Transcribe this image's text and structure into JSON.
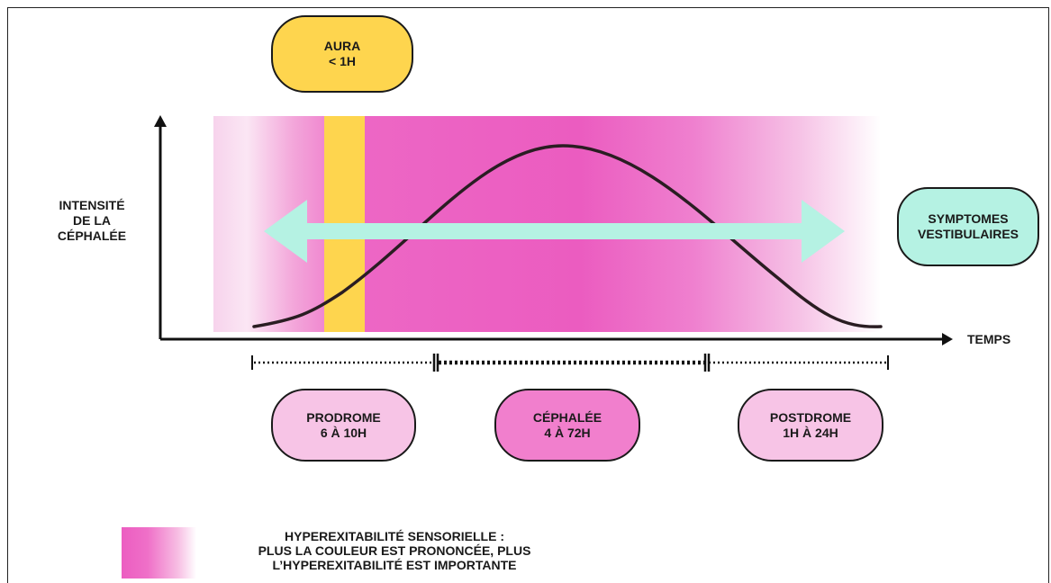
{
  "phases": {
    "aura": {
      "line1": "AURA",
      "line2": "< 1H"
    },
    "prodrome": {
      "line1": "PRODROME",
      "line2": "6 À 10H"
    },
    "cephalee": {
      "line1": "CÉPHALÉE",
      "line2": "4 À 72H"
    },
    "postdrome": {
      "line1": "POSTDROME",
      "line2": "1H À 24H"
    }
  },
  "vestibular": {
    "line1": "SYMPTOMES",
    "line2": "VESTIBULAIRES"
  },
  "axes": {
    "y_label": {
      "line1": "INTENSITÉ",
      "line2": "DE LA",
      "line3": "CÉPHALÉE"
    },
    "x_label": "TEMPS"
  },
  "legend": {
    "line1": "HYPEREXITABILITÉ SENSORIELLE :",
    "line2": "PLUS LA COULEUR EST PRONONCÉE, PLUS",
    "line3": "L’HYPEREXITABILITÉ EST IMPORTANTE"
  },
  "colors": {
    "aura_yellow": "#fed54e",
    "hyperexcitability_pink": "#ec5dc1",
    "light_pink": "#f7c4e6",
    "vestibular_mint": "#b5f2e3",
    "curve": "#2a1d22"
  }
}
